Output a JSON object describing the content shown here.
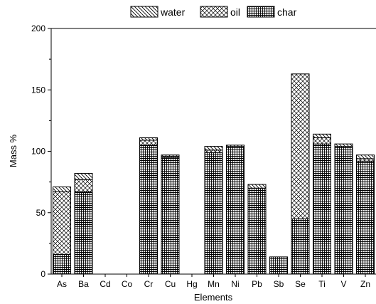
{
  "chart_data": {
    "type": "bar",
    "stacked": true,
    "categories": [
      "As",
      "Ba",
      "Cd",
      "Co",
      "Cr",
      "Cu",
      "Hg",
      "Mn",
      "Ni",
      "Pb",
      "Sb",
      "Se",
      "Ti",
      "V",
      "Zn"
    ],
    "series": [
      {
        "name": "char",
        "pattern": "grid",
        "values": [
          16,
          67,
          0,
          0,
          105,
          95,
          0,
          99,
          104,
          70,
          14,
          45,
          106,
          104,
          92
        ]
      },
      {
        "name": "oil",
        "pattern": "crosshatch",
        "values": [
          51,
          10,
          0,
          0,
          4,
          1,
          0,
          2,
          0,
          0,
          0,
          118,
          5,
          0,
          2
        ]
      },
      {
        "name": "water",
        "pattern": "diagonal",
        "values": [
          4,
          5,
          0,
          0,
          2,
          1,
          0,
          3,
          1,
          3,
          0,
          0,
          3,
          2,
          3
        ]
      }
    ],
    "xlabel": "Elements",
    "ylabel": "Mass %",
    "ylim": [
      0,
      200
    ],
    "yticks": [
      "0",
      "50",
      "100",
      "150",
      "200"
    ],
    "legend_placement": "top",
    "legend_order": [
      "water",
      "oil",
      "char"
    ],
    "grid": false
  }
}
